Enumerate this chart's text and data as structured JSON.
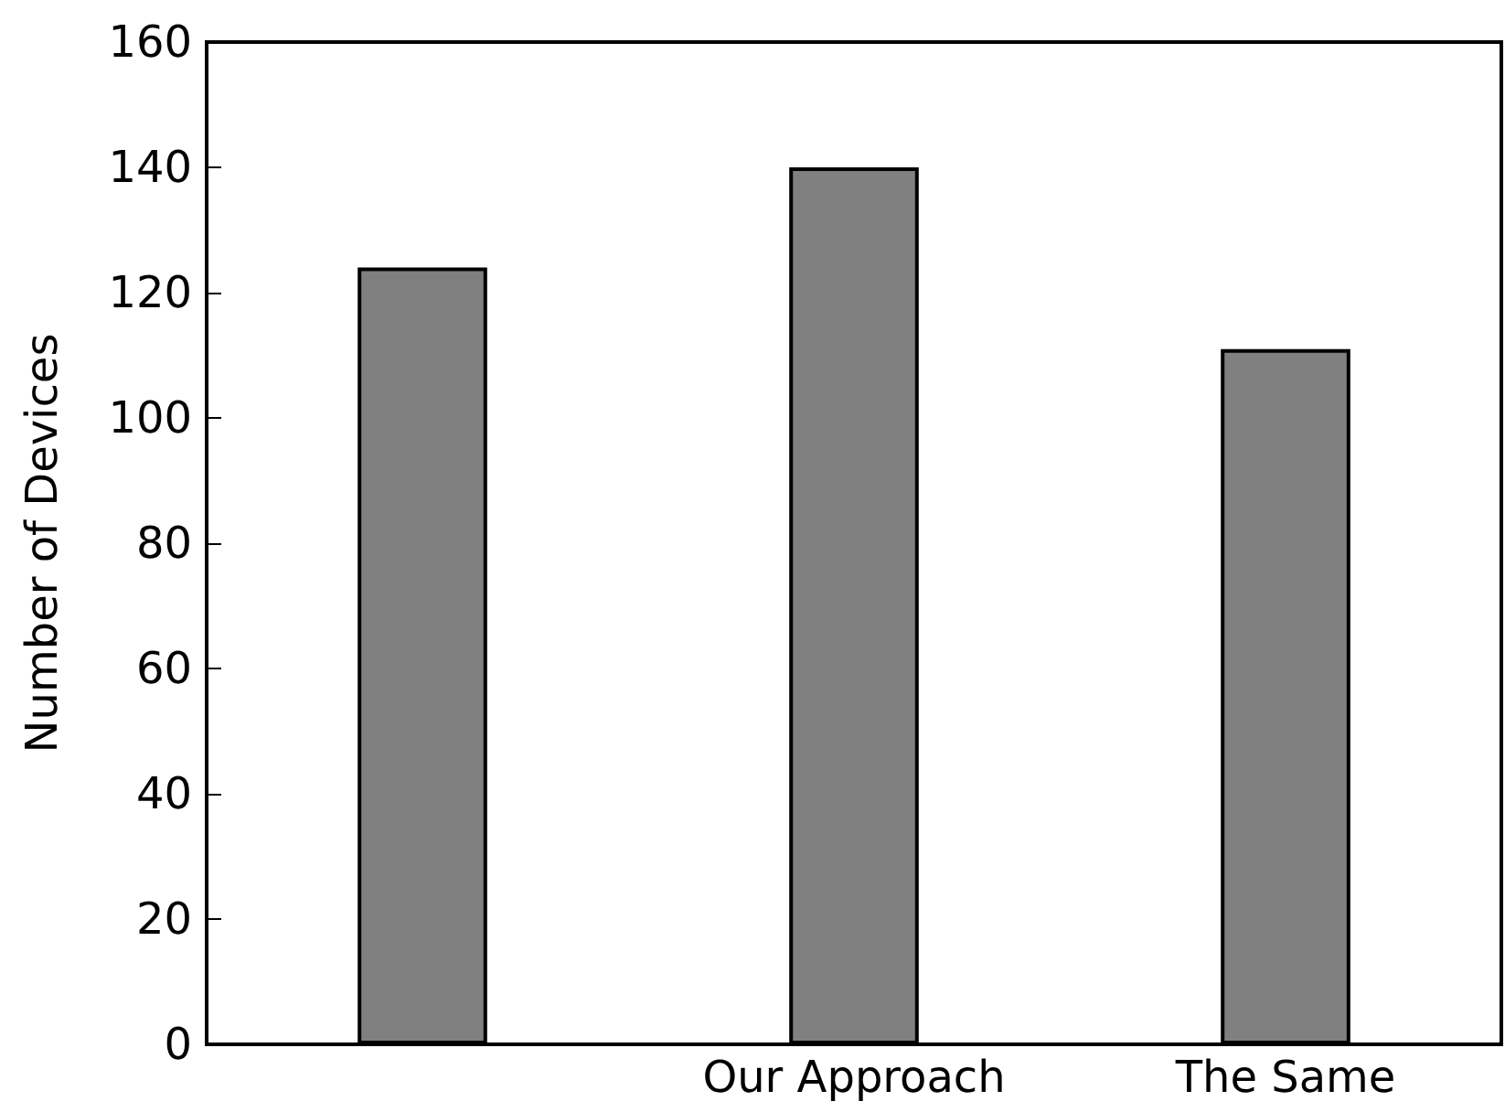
{
  "chart_data": {
    "type": "bar",
    "ylabel": "Number of Devices",
    "categories": [
      null,
      "Our Approach",
      "The Same"
    ],
    "values": [
      124,
      140,
      111
    ],
    "color": "#808080",
    "ylim": [
      0,
      160
    ],
    "yticks": [
      0,
      20,
      40,
      60,
      80,
      100,
      120,
      140,
      160
    ],
    "grid": false
  }
}
